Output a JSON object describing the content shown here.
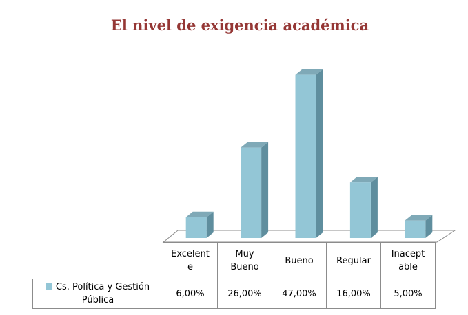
{
  "chart_data": {
    "type": "bar",
    "title": "El nivel de exigencia académica",
    "categories": [
      "Excelente",
      "Muy Bueno",
      "Bueno",
      "Regular",
      "Inaceptable"
    ],
    "series": [
      {
        "name": "Cs. Política y Gestión Pública",
        "color": "#93c6d6",
        "values": [
          6,
          26,
          47,
          16,
          5
        ],
        "value_labels": [
          "6,00%",
          "26,00%",
          "47,00%",
          "16,00%",
          "5,00%"
        ]
      }
    ]
  }
}
